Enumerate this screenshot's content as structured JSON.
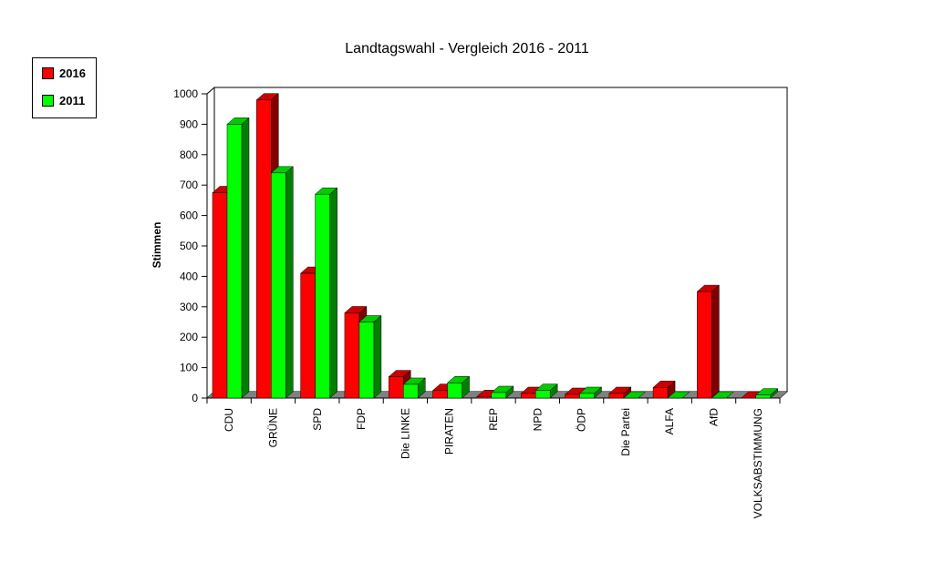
{
  "chart_data": {
    "type": "bar",
    "title": "Landtagswahl - Vergleich 2016 - 2011",
    "xlabel": "",
    "ylabel": "Stimmen",
    "ylim": [
      0,
      1000
    ],
    "yticks": [
      0,
      100,
      200,
      300,
      400,
      500,
      600,
      700,
      800,
      900,
      1000
    ],
    "grid": false,
    "legend_position": "top-left",
    "style": "3d-clustered",
    "categories": [
      "CDU",
      "GRÜNE",
      "SPD",
      "FDP",
      "Die LINKE",
      "PIRATEN",
      "REP",
      "NPD",
      "ÖDP",
      "Die Partei",
      "ALFA",
      "AfD",
      "VOLKSABSTIMMUNG"
    ],
    "series": [
      {
        "name": "2016",
        "color": "#ff0000",
        "values": [
          675,
          980,
          410,
          280,
          70,
          25,
          5,
          15,
          12,
          15,
          35,
          350,
          0
        ]
      },
      {
        "name": "2011",
        "color": "#00ff00",
        "values": [
          900,
          740,
          670,
          250,
          45,
          50,
          18,
          25,
          15,
          0,
          0,
          0,
          10
        ]
      }
    ]
  },
  "legend": {
    "items": [
      {
        "label": "2016",
        "color": "#ff0000"
      },
      {
        "label": "2011",
        "color": "#00ff00"
      }
    ]
  }
}
